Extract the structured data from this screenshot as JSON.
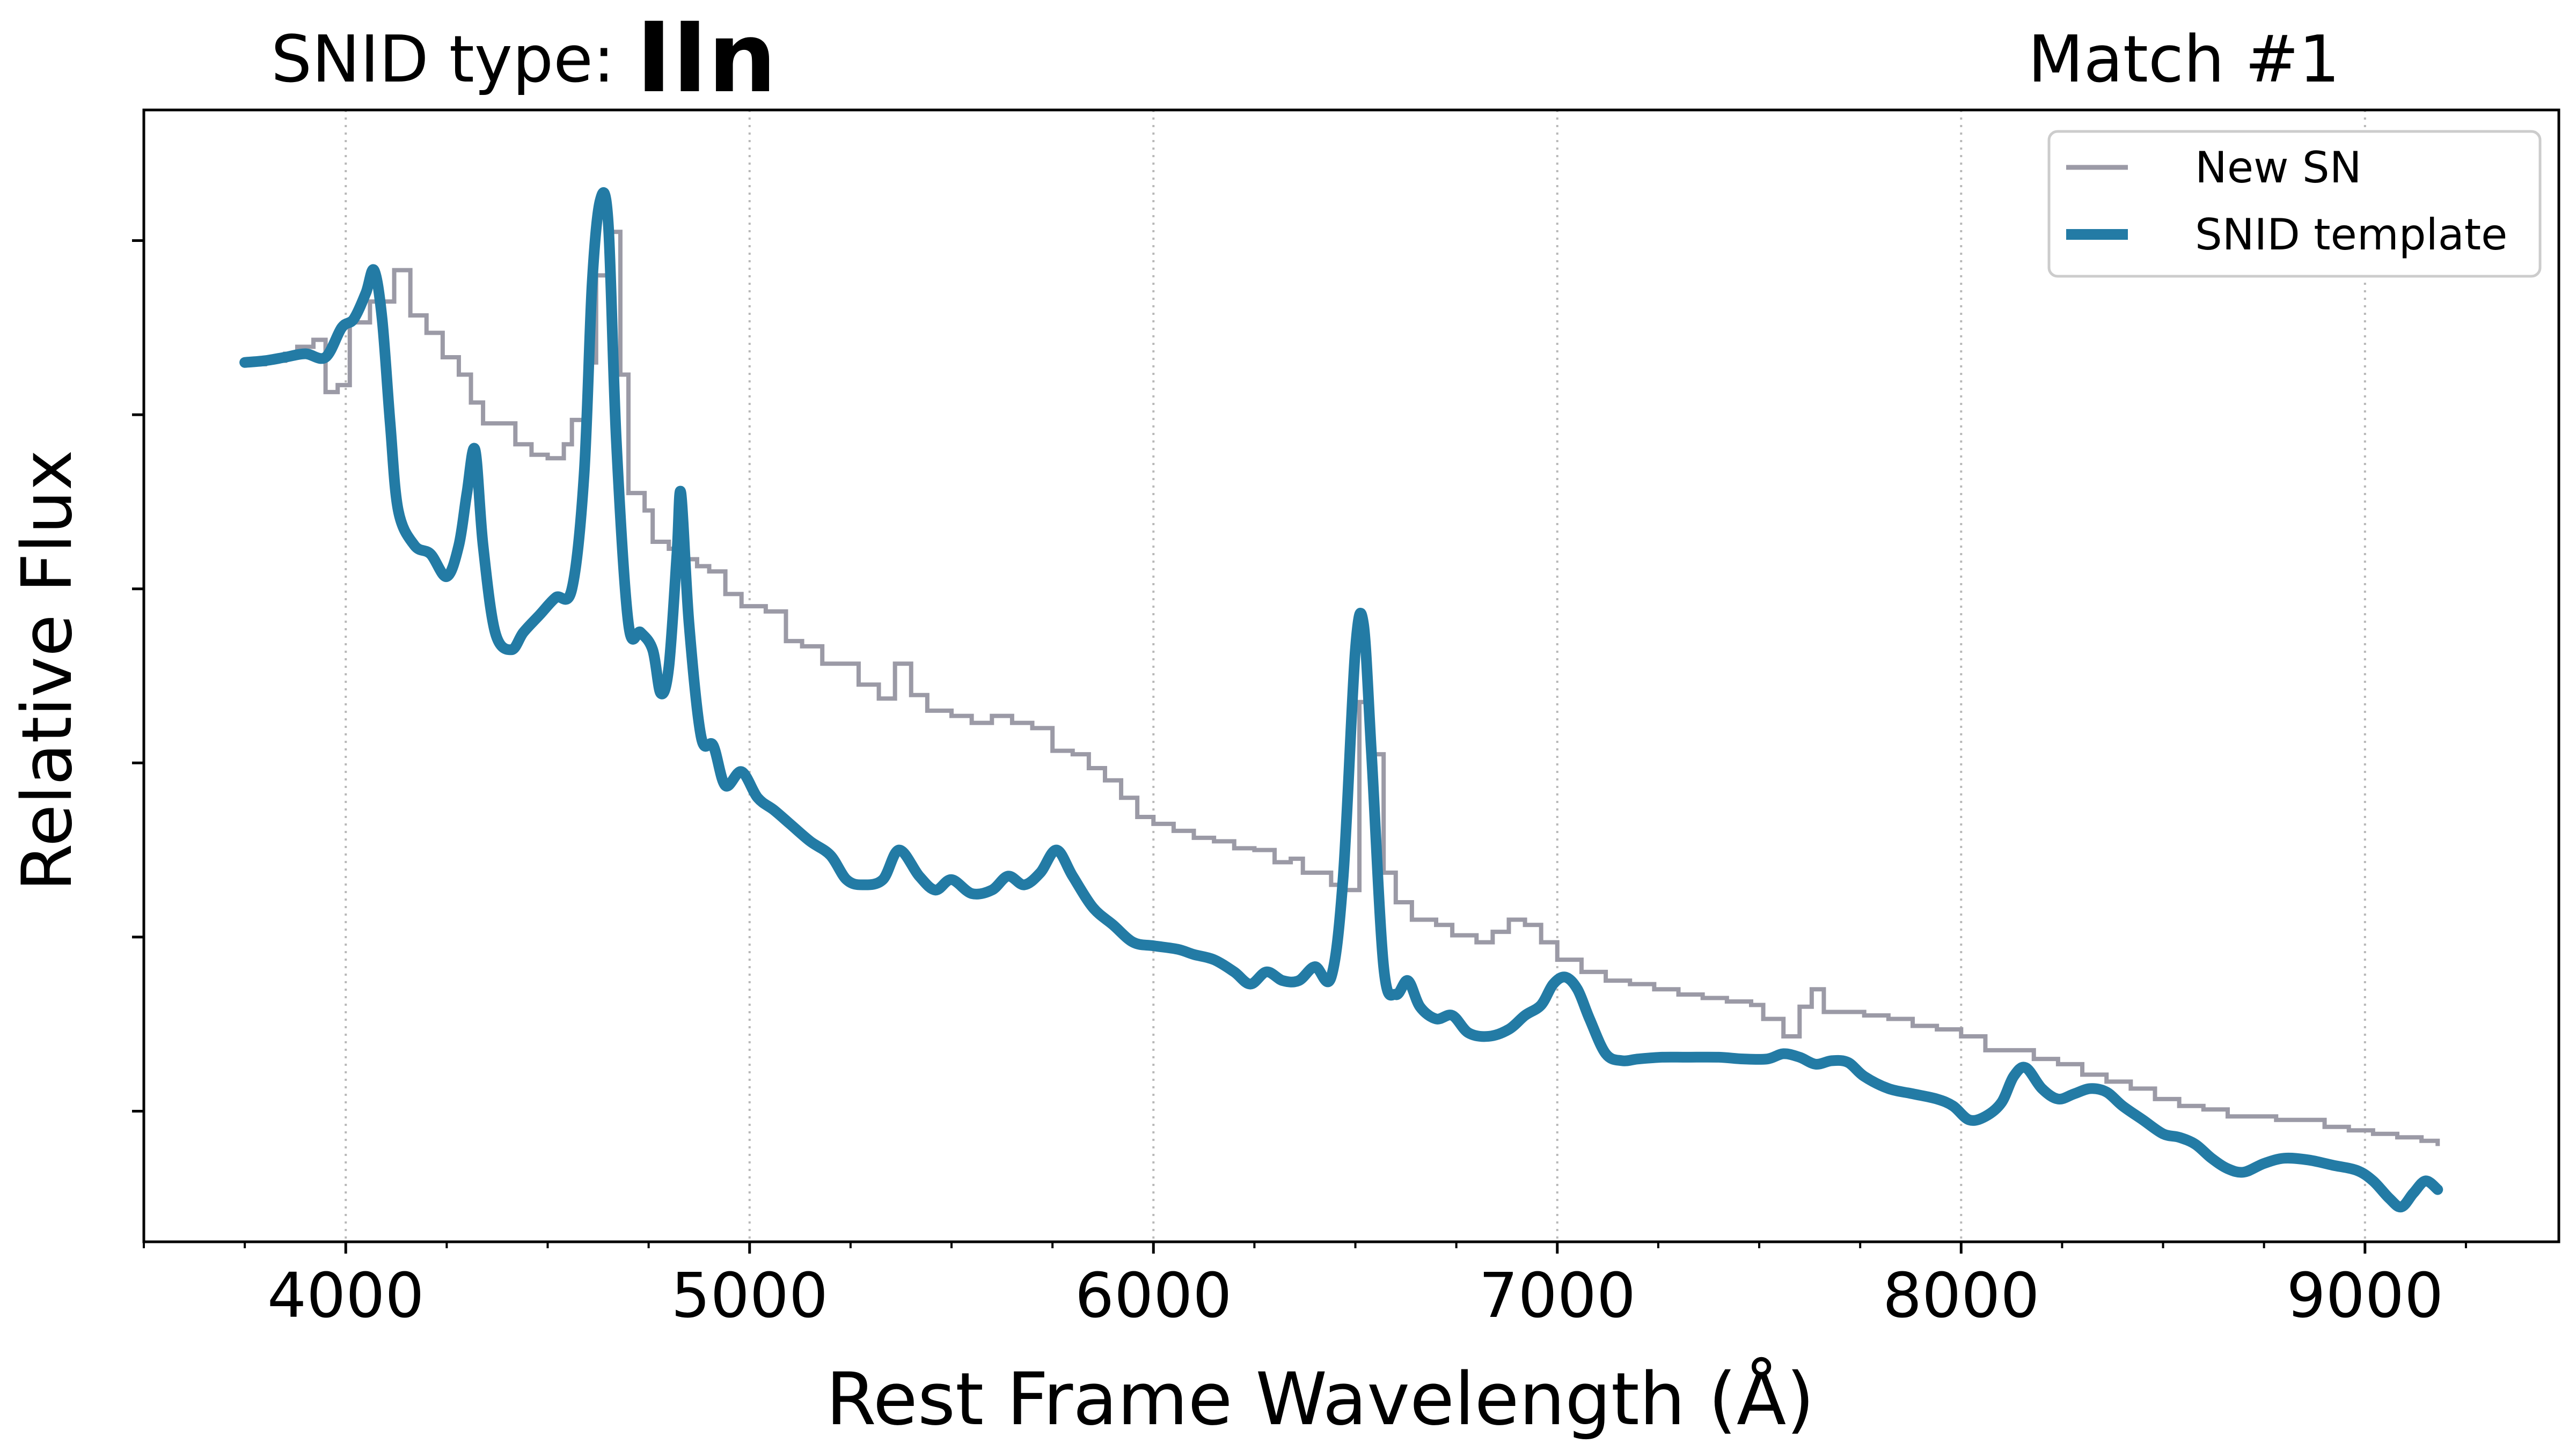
{
  "header": {
    "type_label": "SNID type:",
    "type_value": "IIn",
    "match_label": "Match #1"
  },
  "colors": {
    "template": "#237ba5",
    "new_sn": "#9b9aa6",
    "grid": "#b8b8b8",
    "axes": "#000000"
  },
  "chart_data": {
    "type": "line",
    "title": "",
    "xlabel": "Rest Frame Wavelength (Å)",
    "ylabel": "Relative Flux",
    "xlim": [
      3500,
      9480
    ],
    "ylim": [
      0.0,
      6.5
    ],
    "x_ticks": [
      4000,
      5000,
      6000,
      7000,
      8000,
      9000
    ],
    "x_minor_step": 250,
    "y_ticks_labeled": false,
    "y_ticks": [
      0.75,
      1.75,
      2.75,
      3.75,
      4.75,
      5.75
    ],
    "grid": "vertical dotted at major x ticks",
    "legend_position": "top-right",
    "series": [
      {
        "name": "New SN",
        "style": "step",
        "color": "#9b9aa6",
        "points": [
          [
            3750,
            5.04
          ],
          [
            3800,
            5.06
          ],
          [
            3850,
            5.1
          ],
          [
            3880,
            5.14
          ],
          [
            3920,
            5.18
          ],
          [
            3950,
            4.88
          ],
          [
            3980,
            4.92
          ],
          [
            4010,
            5.28
          ],
          [
            4060,
            5.4
          ],
          [
            4120,
            5.58
          ],
          [
            4160,
            5.32
          ],
          [
            4200,
            5.22
          ],
          [
            4240,
            5.08
          ],
          [
            4280,
            4.98
          ],
          [
            4310,
            4.82
          ],
          [
            4340,
            4.7
          ],
          [
            4380,
            4.7
          ],
          [
            4420,
            4.58
          ],
          [
            4460,
            4.52
          ],
          [
            4500,
            4.5
          ],
          [
            4540,
            4.58
          ],
          [
            4560,
            4.72
          ],
          [
            4600,
            5.05
          ],
          [
            4620,
            5.55
          ],
          [
            4650,
            5.8
          ],
          [
            4680,
            4.98
          ],
          [
            4700,
            4.3
          ],
          [
            4740,
            4.2
          ],
          [
            4760,
            4.02
          ],
          [
            4800,
            3.98
          ],
          [
            4830,
            3.92
          ],
          [
            4870,
            3.88
          ],
          [
            4900,
            3.85
          ],
          [
            4940,
            3.72
          ],
          [
            4980,
            3.65
          ],
          [
            5040,
            3.62
          ],
          [
            5090,
            3.45
          ],
          [
            5130,
            3.42
          ],
          [
            5180,
            3.32
          ],
          [
            5220,
            3.32
          ],
          [
            5270,
            3.2
          ],
          [
            5320,
            3.12
          ],
          [
            5360,
            3.32
          ],
          [
            5400,
            3.14
          ],
          [
            5440,
            3.05
          ],
          [
            5500,
            3.02
          ],
          [
            5550,
            2.98
          ],
          [
            5600,
            3.02
          ],
          [
            5650,
            2.98
          ],
          [
            5700,
            2.95
          ],
          [
            5750,
            2.82
          ],
          [
            5800,
            2.8
          ],
          [
            5840,
            2.72
          ],
          [
            5880,
            2.65
          ],
          [
            5920,
            2.55
          ],
          [
            5960,
            2.44
          ],
          [
            6000,
            2.4
          ],
          [
            6050,
            2.36
          ],
          [
            6100,
            2.32
          ],
          [
            6150,
            2.3
          ],
          [
            6200,
            2.26
          ],
          [
            6250,
            2.25
          ],
          [
            6300,
            2.18
          ],
          [
            6340,
            2.2
          ],
          [
            6370,
            2.12
          ],
          [
            6410,
            2.12
          ],
          [
            6440,
            2.05
          ],
          [
            6470,
            2.02
          ],
          [
            6510,
            3.1
          ],
          [
            6540,
            2.8
          ],
          [
            6570,
            2.12
          ],
          [
            6600,
            1.95
          ],
          [
            6640,
            1.85
          ],
          [
            6700,
            1.82
          ],
          [
            6740,
            1.76
          ],
          [
            6800,
            1.72
          ],
          [
            6840,
            1.78
          ],
          [
            6880,
            1.85
          ],
          [
            6920,
            1.82
          ],
          [
            6960,
            1.72
          ],
          [
            7000,
            1.62
          ],
          [
            7060,
            1.55
          ],
          [
            7120,
            1.5
          ],
          [
            7180,
            1.48
          ],
          [
            7240,
            1.45
          ],
          [
            7300,
            1.42
          ],
          [
            7360,
            1.4
          ],
          [
            7420,
            1.38
          ],
          [
            7480,
            1.36
          ],
          [
            7510,
            1.28
          ],
          [
            7560,
            1.18
          ],
          [
            7600,
            1.35
          ],
          [
            7630,
            1.45
          ],
          [
            7660,
            1.32
          ],
          [
            7700,
            1.32
          ],
          [
            7760,
            1.3
          ],
          [
            7820,
            1.28
          ],
          [
            7880,
            1.24
          ],
          [
            7940,
            1.22
          ],
          [
            8000,
            1.18
          ],
          [
            8060,
            1.1
          ],
          [
            8120,
            1.1
          ],
          [
            8180,
            1.05
          ],
          [
            8240,
            1.02
          ],
          [
            8300,
            0.96
          ],
          [
            8360,
            0.92
          ],
          [
            8420,
            0.88
          ],
          [
            8480,
            0.82
          ],
          [
            8540,
            0.78
          ],
          [
            8600,
            0.76
          ],
          [
            8660,
            0.72
          ],
          [
            8720,
            0.72
          ],
          [
            8780,
            0.7
          ],
          [
            8840,
            0.7
          ],
          [
            8900,
            0.66
          ],
          [
            8960,
            0.64
          ],
          [
            9020,
            0.62
          ],
          [
            9080,
            0.6
          ],
          [
            9140,
            0.58
          ],
          [
            9180,
            0.55
          ]
        ]
      },
      {
        "name": "SNID template",
        "style": "smooth",
        "color": "#237ba5",
        "points": [
          [
            3750,
            5.05
          ],
          [
            3800,
            5.06
          ],
          [
            3850,
            5.08
          ],
          [
            3900,
            5.1
          ],
          [
            3950,
            5.08
          ],
          [
            3990,
            5.25
          ],
          [
            4020,
            5.3
          ],
          [
            4050,
            5.45
          ],
          [
            4070,
            5.58
          ],
          [
            4090,
            5.3
          ],
          [
            4110,
            4.7
          ],
          [
            4130,
            4.2
          ],
          [
            4170,
            4.0
          ],
          [
            4210,
            3.95
          ],
          [
            4250,
            3.82
          ],
          [
            4280,
            4.0
          ],
          [
            4300,
            4.3
          ],
          [
            4320,
            4.55
          ],
          [
            4340,
            4.0
          ],
          [
            4370,
            3.5
          ],
          [
            4410,
            3.4
          ],
          [
            4440,
            3.5
          ],
          [
            4480,
            3.6
          ],
          [
            4520,
            3.7
          ],
          [
            4560,
            3.75
          ],
          [
            4590,
            4.4
          ],
          [
            4610,
            5.5
          ],
          [
            4630,
            5.98
          ],
          [
            4650,
            5.85
          ],
          [
            4670,
            4.6
          ],
          [
            4700,
            3.55
          ],
          [
            4730,
            3.5
          ],
          [
            4760,
            3.4
          ],
          [
            4780,
            3.15
          ],
          [
            4800,
            3.3
          ],
          [
            4820,
            3.95
          ],
          [
            4830,
            4.3
          ],
          [
            4850,
            3.55
          ],
          [
            4880,
            2.9
          ],
          [
            4910,
            2.85
          ],
          [
            4940,
            2.62
          ],
          [
            4980,
            2.7
          ],
          [
            5020,
            2.55
          ],
          [
            5060,
            2.48
          ],
          [
            5100,
            2.4
          ],
          [
            5150,
            2.3
          ],
          [
            5200,
            2.22
          ],
          [
            5240,
            2.08
          ],
          [
            5280,
            2.05
          ],
          [
            5330,
            2.08
          ],
          [
            5370,
            2.25
          ],
          [
            5420,
            2.1
          ],
          [
            5460,
            2.02
          ],
          [
            5500,
            2.08
          ],
          [
            5550,
            2.0
          ],
          [
            5600,
            2.02
          ],
          [
            5640,
            2.1
          ],
          [
            5680,
            2.05
          ],
          [
            5720,
            2.12
          ],
          [
            5760,
            2.25
          ],
          [
            5800,
            2.1
          ],
          [
            5850,
            1.92
          ],
          [
            5900,
            1.82
          ],
          [
            5950,
            1.72
          ],
          [
            6000,
            1.7
          ],
          [
            6060,
            1.68
          ],
          [
            6100,
            1.65
          ],
          [
            6150,
            1.62
          ],
          [
            6200,
            1.55
          ],
          [
            6240,
            1.48
          ],
          [
            6280,
            1.55
          ],
          [
            6320,
            1.5
          ],
          [
            6360,
            1.5
          ],
          [
            6400,
            1.58
          ],
          [
            6440,
            1.52
          ],
          [
            6470,
            2.1
          ],
          [
            6500,
            3.4
          ],
          [
            6520,
            3.55
          ],
          [
            6540,
            2.8
          ],
          [
            6570,
            1.58
          ],
          [
            6600,
            1.42
          ],
          [
            6630,
            1.5
          ],
          [
            6660,
            1.35
          ],
          [
            6700,
            1.28
          ],
          [
            6740,
            1.3
          ],
          [
            6780,
            1.2
          ],
          [
            6830,
            1.18
          ],
          [
            6880,
            1.22
          ],
          [
            6920,
            1.3
          ],
          [
            6960,
            1.36
          ],
          [
            6990,
            1.48
          ],
          [
            7020,
            1.52
          ],
          [
            7050,
            1.45
          ],
          [
            7080,
            1.28
          ],
          [
            7120,
            1.08
          ],
          [
            7160,
            1.04
          ],
          [
            7200,
            1.05
          ],
          [
            7260,
            1.06
          ],
          [
            7320,
            1.06
          ],
          [
            7400,
            1.06
          ],
          [
            7460,
            1.05
          ],
          [
            7520,
            1.05
          ],
          [
            7560,
            1.08
          ],
          [
            7600,
            1.06
          ],
          [
            7640,
            1.02
          ],
          [
            7680,
            1.04
          ],
          [
            7720,
            1.03
          ],
          [
            7760,
            0.95
          ],
          [
            7820,
            0.88
          ],
          [
            7880,
            0.85
          ],
          [
            7940,
            0.82
          ],
          [
            7980,
            0.78
          ],
          [
            8020,
            0.7
          ],
          [
            8060,
            0.72
          ],
          [
            8100,
            0.8
          ],
          [
            8130,
            0.95
          ],
          [
            8160,
            1.0
          ],
          [
            8200,
            0.88
          ],
          [
            8240,
            0.82
          ],
          [
            8280,
            0.85
          ],
          [
            8320,
            0.88
          ],
          [
            8360,
            0.86
          ],
          [
            8400,
            0.78
          ],
          [
            8450,
            0.7
          ],
          [
            8500,
            0.62
          ],
          [
            8540,
            0.6
          ],
          [
            8580,
            0.56
          ],
          [
            8620,
            0.48
          ],
          [
            8660,
            0.42
          ],
          [
            8700,
            0.4
          ],
          [
            8750,
            0.45
          ],
          [
            8800,
            0.48
          ],
          [
            8860,
            0.47
          ],
          [
            8920,
            0.44
          ],
          [
            8980,
            0.41
          ],
          [
            9020,
            0.35
          ],
          [
            9060,
            0.25
          ],
          [
            9090,
            0.2
          ],
          [
            9120,
            0.28
          ],
          [
            9150,
            0.35
          ],
          [
            9180,
            0.3
          ]
        ]
      }
    ]
  }
}
